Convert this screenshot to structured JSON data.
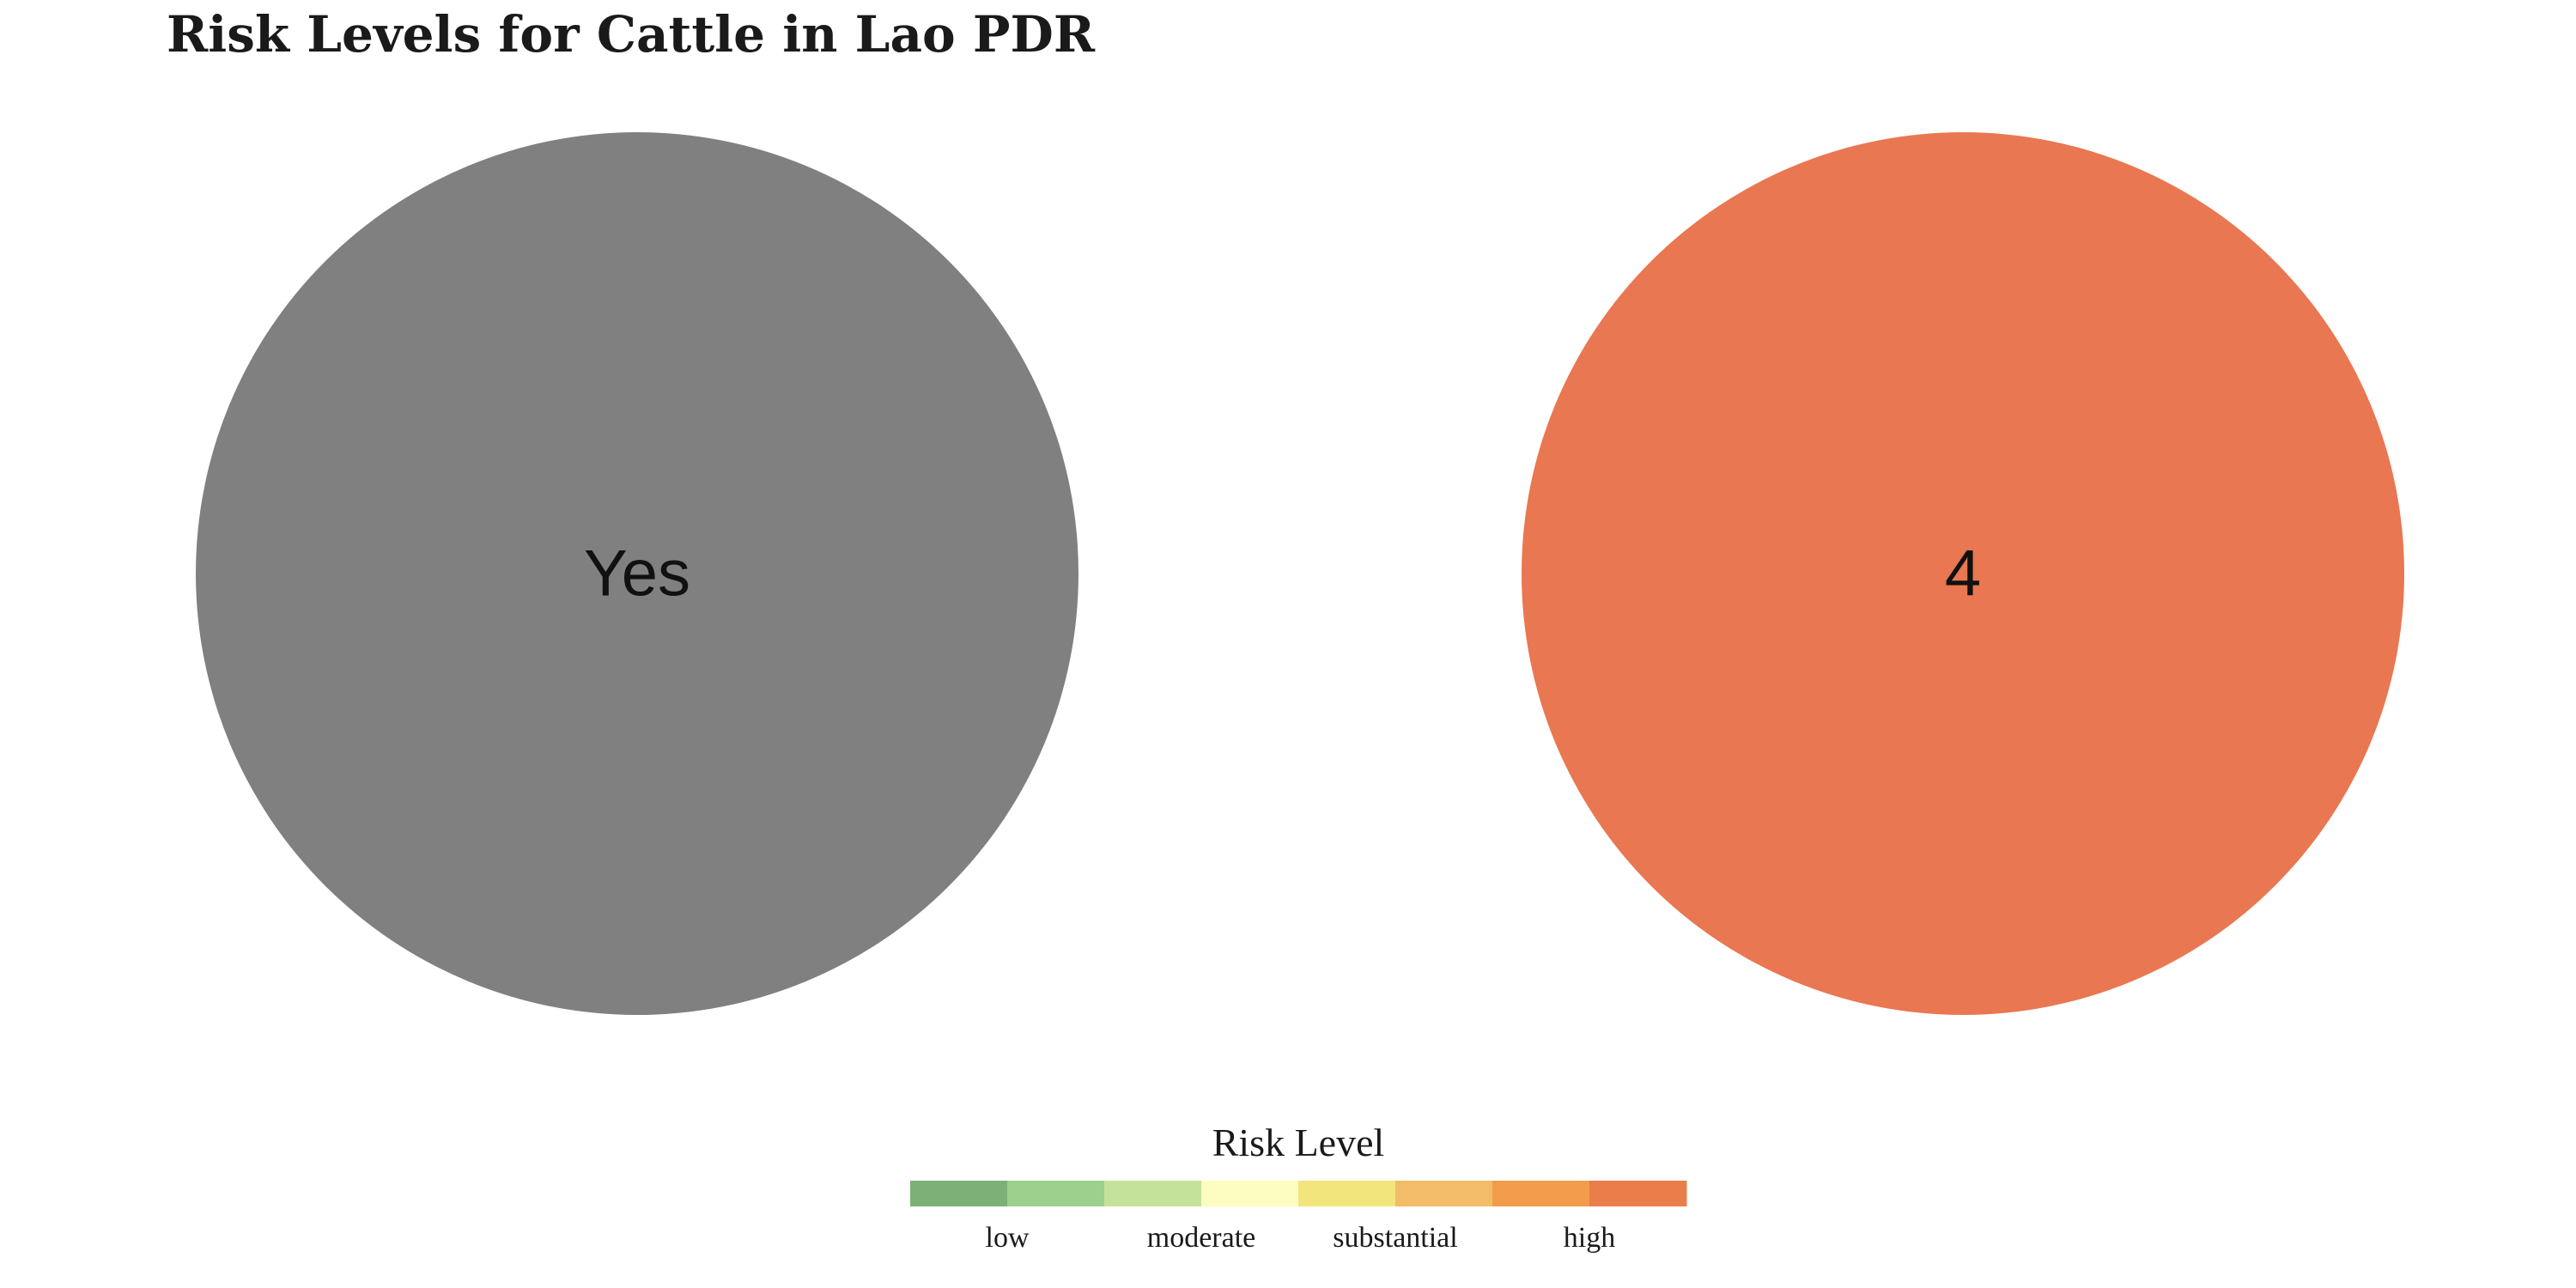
{
  "chart_data": {
    "type": "pie",
    "title": "Risk Levels for Cattle in Lao PDR",
    "panels": [
      {
        "label": "Yes",
        "value": 1,
        "color": "#808080"
      },
      {
        "label": "4",
        "value": 1,
        "color": "#E97751"
      }
    ],
    "legend": {
      "title": "Risk Level",
      "placement": "bottom",
      "colors": [
        "#7DB076",
        "#9CD08C",
        "#C5E29A",
        "#FDFDC2",
        "#F2E57C",
        "#F3BC68",
        "#F19D4B",
        "#E97E4B"
      ],
      "tick_labels": [
        "low",
        "moderate",
        "substantial",
        "high"
      ]
    }
  }
}
